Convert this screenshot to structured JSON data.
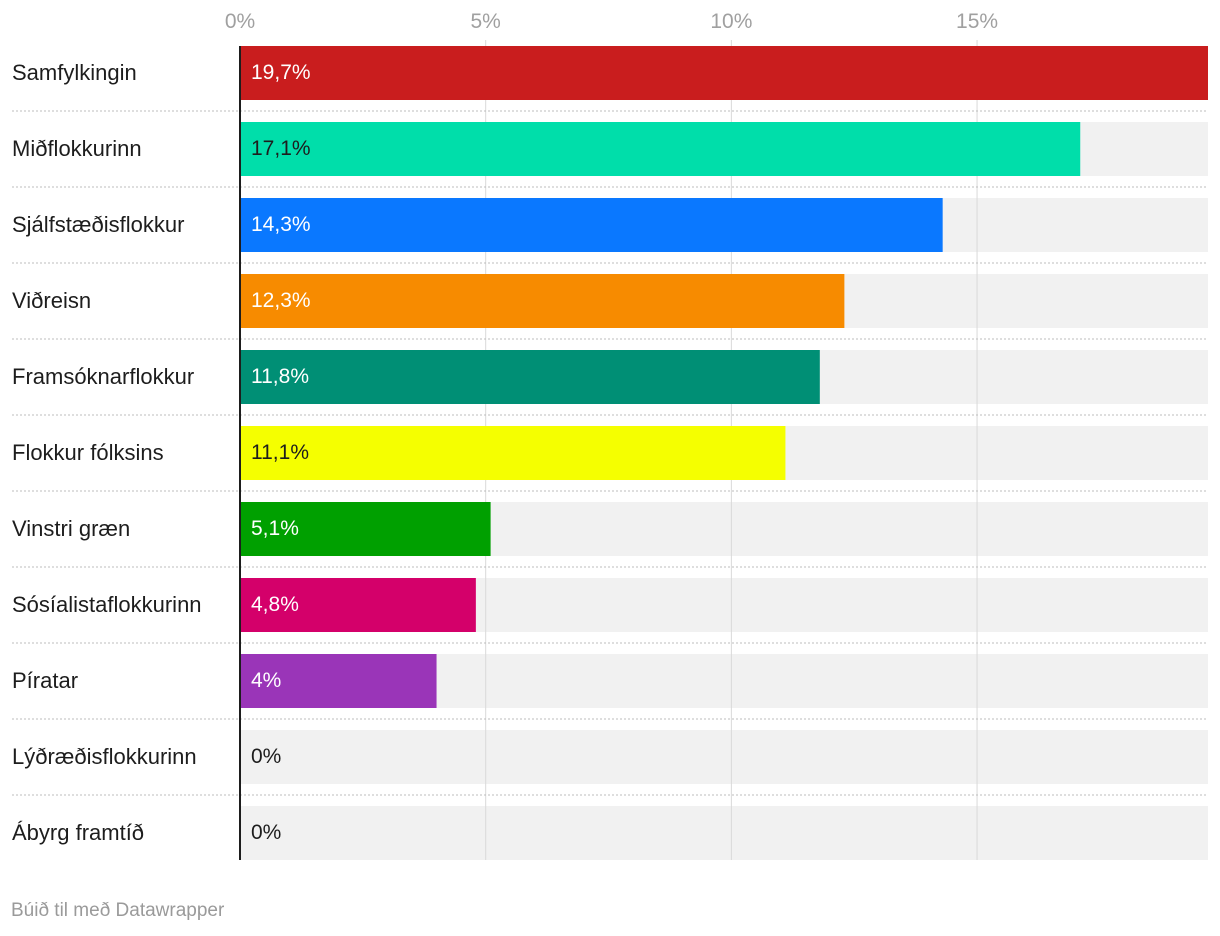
{
  "chart_data": {
    "type": "bar",
    "orientation": "horizontal",
    "categories": [
      "Samfylkingin",
      "Miðflokkurinn",
      "Sjálfstæðisflokkur",
      "Viðreisn",
      "Framsóknarflokkur",
      "Flokkur fólksins",
      "Vinstri græn",
      "Sósíalistaflokkurinn",
      "Píratar",
      "Lýðræðisflokkurinn",
      "Ábyrg framtíð"
    ],
    "values": [
      19.7,
      17.1,
      14.3,
      12.3,
      11.8,
      11.1,
      5.1,
      4.8,
      4.0,
      0,
      0
    ],
    "value_labels": [
      "19,7%",
      "17,1%",
      "14,3%",
      "12,3%",
      "11,8%",
      "11,1%",
      "5,1%",
      "4,8%",
      "4%",
      "0%",
      "0%"
    ],
    "colors": [
      "#c91d1e",
      "#00deaa",
      "#0a78ff",
      "#f78b00",
      "#008f75",
      "#f5ff00",
      "#00a000",
      "#d4006a",
      "#9a35b8",
      "#f1f1f1",
      "#f1f1f1"
    ],
    "label_colors": [
      "#ffffff",
      "#1d1d1d",
      "#ffffff",
      "#ffffff",
      "#ffffff",
      "#1d1d1d",
      "#ffffff",
      "#ffffff",
      "#ffffff",
      "#1d1d1d",
      "#1d1d1d"
    ],
    "xlim": [
      0,
      19.7
    ],
    "xticks": [
      0,
      5,
      10,
      15
    ],
    "xtick_labels": [
      "0%",
      "5%",
      "10%",
      "15%"
    ],
    "background_bar_color": "#f1f1f1",
    "gridlines": true
  },
  "credit": "Búið til með Datawrapper"
}
